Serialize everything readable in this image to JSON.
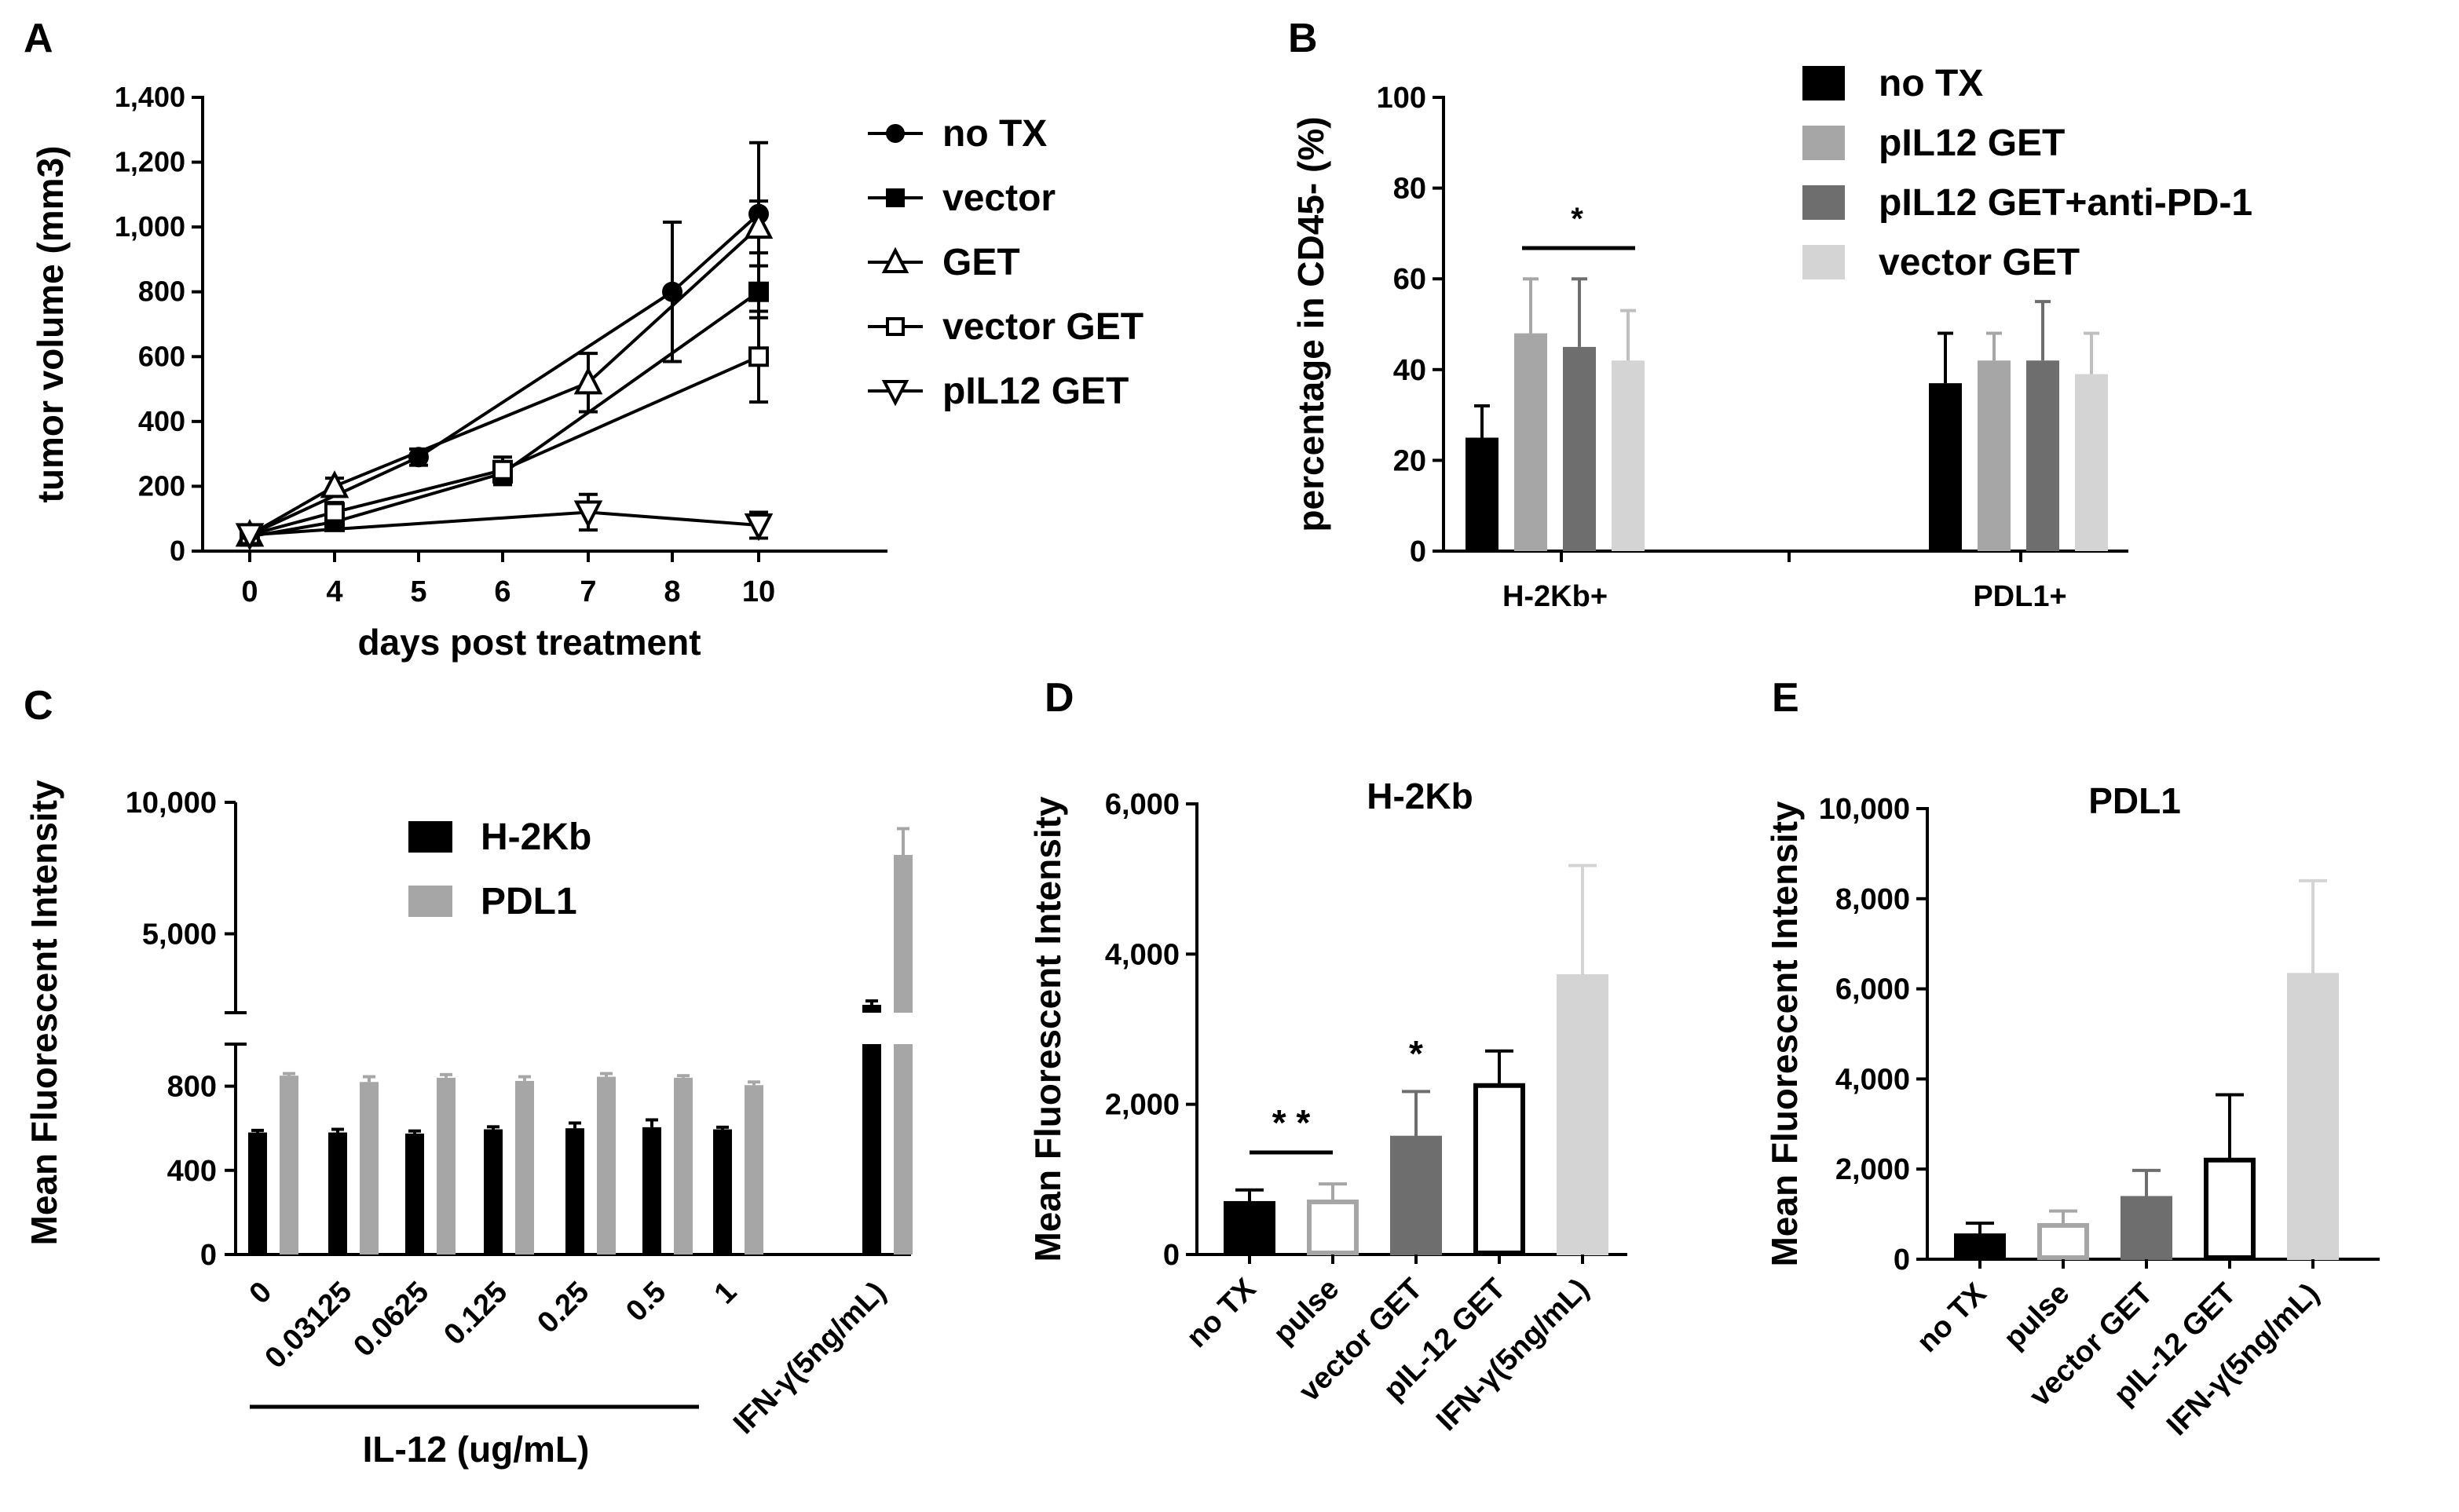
{
  "colors": {
    "black": "#000000",
    "gray": "#a6a6a6",
    "dark_gray": "#6e6e6e",
    "light_gray": "#d4d4d4",
    "white": "#ffffff"
  },
  "chart_data": [
    {
      "panel": "A",
      "type": "line",
      "xlabel": "days post treatment",
      "ylabel": "tumor volume (mm3)",
      "ylim": [
        0,
        1400
      ],
      "yticks": [
        "0",
        "200",
        "400",
        "600",
        "800",
        "1,000",
        "1,200",
        "1,400"
      ],
      "xticks": [
        "0",
        "4",
        "5",
        "6",
        "7",
        "8",
        "10"
      ],
      "series": [
        {
          "name": "no TX",
          "marker": "circle",
          "x": [
            0,
            5,
            8,
            10
          ],
          "y": [
            50,
            290,
            800,
            1040
          ],
          "err": [
            15,
            25,
            215,
            220
          ]
        },
        {
          "name": "vector",
          "marker": "square",
          "x": [
            0,
            4,
            6,
            10
          ],
          "y": [
            45,
            90,
            240,
            800
          ],
          "err": [
            10,
            20,
            35,
            80
          ]
        },
        {
          "name": "GET",
          "marker": "triangle-up",
          "x": [
            0,
            4,
            7,
            10
          ],
          "y": [
            50,
            200,
            520,
            1000
          ],
          "err": [
            10,
            25,
            90,
            80
          ]
        },
        {
          "name": "vector GET",
          "marker": "square-open",
          "x": [
            0,
            4,
            6,
            10
          ],
          "y": [
            50,
            120,
            250,
            600
          ],
          "err": [
            10,
            30,
            40,
            140
          ]
        },
        {
          "name": "pIL12 GET",
          "marker": "triangle-down",
          "x": [
            0,
            7,
            10
          ],
          "y": [
            50,
            120,
            80
          ],
          "err": [
            10,
            55,
            40
          ]
        }
      ]
    },
    {
      "panel": "B",
      "type": "bar",
      "ylabel": "percentage in CD45- (%)",
      "ylim": [
        0,
        100
      ],
      "yticks": [
        "0",
        "20",
        "40",
        "60",
        "80",
        "100"
      ],
      "categories": [
        "H-2Kb+",
        "PDL1+"
      ],
      "series": [
        {
          "name": "no TX",
          "values": [
            25,
            37
          ],
          "err": [
            7,
            11
          ]
        },
        {
          "name": "pIL12 GET",
          "values": [
            48,
            42
          ],
          "err": [
            12,
            6
          ]
        },
        {
          "name": "pIL12 GET+anti-PD-1",
          "values": [
            45,
            42
          ],
          "err": [
            15,
            13
          ]
        },
        {
          "name": "vector GET",
          "values": [
            42,
            39
          ],
          "err": [
            11,
            9
          ]
        }
      ],
      "annotations": [
        "*"
      ]
    },
    {
      "panel": "C",
      "type": "bar",
      "ylabel": "Mean Fluorescent Intensity",
      "yticks_lower": [
        "0",
        "400",
        "800"
      ],
      "yticks_upper": [
        "5,000",
        "10,000"
      ],
      "group_label": "IL-12 (ug/mL)",
      "categories": [
        "0",
        "0.03125",
        "0.0625",
        "0.125",
        "0.25",
        "0.5",
        "1",
        "IFN-γ(5ng/mL)"
      ],
      "series": [
        {
          "name": "H-2Kb",
          "values": [
            580,
            580,
            575,
            595,
            600,
            605,
            595,
            2300
          ],
          "err": [
            10,
            15,
            12,
            12,
            25,
            35,
            10,
            150
          ]
        },
        {
          "name": "PDL1",
          "values": [
            850,
            820,
            840,
            825,
            845,
            840,
            805,
            8000
          ],
          "err": [
            10,
            25,
            15,
            20,
            15,
            10,
            15,
            1000
          ]
        }
      ]
    },
    {
      "panel": "D",
      "type": "bar",
      "title": "H-2Kb",
      "ylabel": "Mean Fluorescent Intensity",
      "ylim": [
        0,
        6000
      ],
      "yticks": [
        "0",
        "2,000",
        "4,000",
        "6,000"
      ],
      "categories": [
        "no TX",
        "pulse",
        "vector GET",
        "pIL-12 GET",
        "IFN-γ(5ng/mL)"
      ],
      "values": [
        680,
        700,
        1550,
        2250,
        3700
      ],
      "err": [
        180,
        240,
        620,
        460,
        1480
      ],
      "annotations": [
        "* *",
        "*"
      ]
    },
    {
      "panel": "E",
      "type": "bar",
      "title": "PDL1",
      "ylabel": "Mean Fluorescent Intensity",
      "ylim": [
        0,
        10000
      ],
      "yticks": [
        "0",
        "2,000",
        "4,000",
        "6,000",
        "8,000",
        "10,000"
      ],
      "categories": [
        "no TX",
        "pulse",
        "vector GET",
        "pIL-12 GET",
        "IFN-γ(5ng/mL)"
      ],
      "values": [
        520,
        750,
        1350,
        2200,
        6300
      ],
      "err": [
        280,
        320,
        620,
        1450,
        2100
      ]
    }
  ],
  "labels": {
    "panel_a": "A",
    "panel_b": "B",
    "panel_c": "C",
    "panel_d": "D",
    "panel_e": "E",
    "star": "*",
    "star_pair": "* *"
  }
}
